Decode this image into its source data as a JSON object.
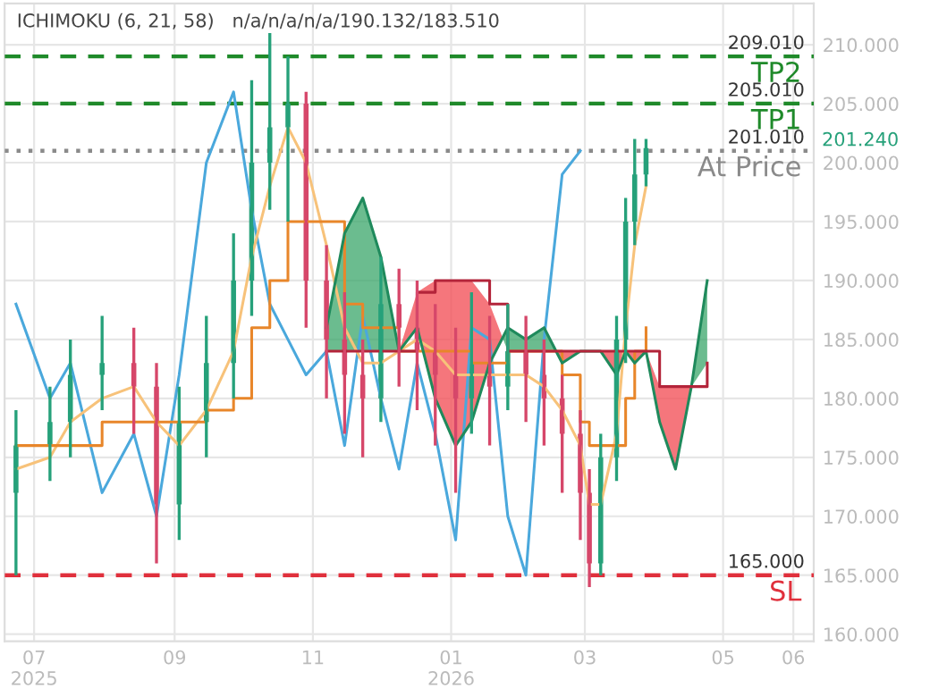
{
  "chart_data": {
    "type": "candlestick",
    "title": "ICHIMOKU (6, 21, 58)   n/a/n/a/n/a/190.132/183.510",
    "x": [
      "2025-06-23",
      "2025-07-08",
      "2025-07-17",
      "2025-07-31",
      "2025-08-14",
      "2025-08-24",
      "2025-09-03",
      "2025-09-15",
      "2025-09-27",
      "2025-10-05",
      "2025-10-13",
      "2025-10-21",
      "2025-10-29",
      "2025-11-07",
      "2025-11-15",
      "2025-11-23",
      "2025-12-01",
      "2025-12-09",
      "2025-12-17",
      "2025-12-25",
      "2026-01-03",
      "2026-01-10",
      "2026-01-18",
      "2026-01-26",
      "2026-02-03",
      "2026-02-11",
      "2026-02-19",
      "2026-02-27",
      "2026-03-03",
      "2026-03-08",
      "2026-03-15",
      "2026-03-19",
      "2026-03-23",
      "2026-03-28"
    ],
    "ohlc": [
      [
        172,
        179,
        165,
        176
      ],
      [
        176,
        181,
        173,
        178
      ],
      [
        178,
        185,
        175,
        182
      ],
      [
        182,
        187,
        179,
        183
      ],
      [
        183,
        186,
        177,
        181
      ],
      [
        181,
        183,
        166,
        171
      ],
      [
        171,
        181,
        168,
        178
      ],
      [
        178,
        187,
        175,
        183
      ],
      [
        183,
        194,
        180,
        190
      ],
      [
        190,
        207,
        187,
        200
      ],
      [
        200,
        211,
        196,
        203
      ],
      [
        203,
        209,
        195,
        205
      ],
      [
        205,
        206,
        186,
        190
      ],
      [
        190,
        193,
        180,
        185
      ],
      [
        185,
        189,
        177,
        182
      ],
      [
        182,
        185,
        175,
        180
      ],
      [
        180,
        192,
        178,
        188
      ],
      [
        188,
        191,
        181,
        186
      ],
      [
        186,
        190,
        179,
        184
      ],
      [
        184,
        188,
        176,
        182
      ],
      [
        182,
        186,
        172,
        180
      ],
      [
        180,
        189,
        177,
        183
      ],
      [
        183,
        187,
        176,
        181
      ],
      [
        181,
        188,
        179,
        184
      ],
      [
        184,
        187,
        178,
        182
      ],
      [
        182,
        185,
        176,
        180
      ],
      [
        180,
        182,
        172,
        177
      ],
      [
        177,
        179,
        168,
        172
      ],
      [
        172,
        174,
        164,
        166
      ],
      [
        166,
        177,
        165,
        175
      ],
      [
        175,
        187,
        173,
        185
      ],
      [
        185,
        197,
        183,
        195
      ],
      [
        195,
        202,
        193,
        199
      ],
      [
        199,
        202,
        198,
        201.24
      ]
    ],
    "colors": [
      "#26a17a",
      "#26a17a",
      "#26a17a",
      "#26a17a",
      "#d6476a",
      "#d6476a",
      "#26a17a",
      "#26a17a",
      "#26a17a",
      "#26a17a",
      "#26a17a",
      "#26a17a",
      "#d6476a",
      "#d6476a",
      "#d6476a",
      "#d6476a",
      "#26a17a",
      "#d6476a",
      "#d6476a",
      "#d6476a",
      "#d6476a",
      "#26a17a",
      "#d6476a",
      "#26a17a",
      "#d6476a",
      "#d6476a",
      "#d6476a",
      "#d6476a",
      "#d6476a",
      "#26a17a",
      "#26a17a",
      "#26a17a",
      "#26a17a",
      "#26a17a"
    ],
    "series": [
      {
        "type": "line",
        "color": "#4aa8dc",
        "x": [
          "2025-06-23",
          "2025-07-08",
          "2025-07-17",
          "2025-07-31",
          "2025-08-14",
          "2025-08-24",
          "2025-09-03",
          "2025-09-15",
          "2025-09-27",
          "2025-10-05",
          "2025-10-13",
          "2025-10-21",
          "2025-10-29",
          "2025-11-07",
          "2025-11-15",
          "2025-11-23",
          "2025-12-01",
          "2025-12-09",
          "2025-12-17",
          "2025-12-25",
          "2026-01-03",
          "2026-01-10",
          "2026-01-18",
          "2026-01-26",
          "2026-02-03",
          "2026-02-11",
          "2026-02-19",
          "2026-02-27"
        ],
        "values": [
          188,
          180,
          183,
          172,
          177,
          170,
          182,
          200,
          206,
          196,
          188,
          185,
          182,
          184,
          176,
          187,
          180,
          174,
          183,
          177,
          168,
          186,
          185,
          170,
          165,
          185,
          199,
          201
        ]
      },
      {
        "type": "line",
        "color": "#f7c27a",
        "x": [
          "2025-06-23",
          "2025-07-08",
          "2025-07-17",
          "2025-07-31",
          "2025-08-14",
          "2025-08-24",
          "2025-09-03",
          "2025-09-15",
          "2025-09-27",
          "2025-10-05",
          "2025-10-13",
          "2025-10-21",
          "2025-10-29",
          "2025-11-07",
          "2025-11-15",
          "2025-11-23",
          "2025-12-01",
          "2025-12-09",
          "2025-12-17",
          "2025-12-25",
          "2026-01-03",
          "2026-01-10",
          "2026-01-18",
          "2026-01-26",
          "2026-02-03",
          "2026-02-11",
          "2026-02-19",
          "2026-02-27",
          "2026-03-03",
          "2026-03-08",
          "2026-03-15",
          "2026-03-19",
          "2026-03-23",
          "2026-03-28"
        ],
        "values": [
          174,
          175,
          178,
          180,
          181,
          178,
          176,
          179,
          184,
          192,
          198,
          203,
          200,
          193,
          186,
          183,
          183,
          184,
          185,
          184,
          182,
          182,
          182,
          182,
          182,
          181,
          179,
          176,
          171,
          171,
          177,
          186,
          193,
          198
        ]
      },
      {
        "type": "step",
        "color": "#e8862a",
        "x": [
          "2025-06-23",
          "2025-07-08",
          "2025-07-17",
          "2025-07-31",
          "2025-08-14",
          "2025-08-24",
          "2025-09-03",
          "2025-09-15",
          "2025-09-27",
          "2025-10-05",
          "2025-10-13",
          "2025-10-21",
          "2025-10-29",
          "2025-11-07",
          "2025-11-15",
          "2025-11-23",
          "2025-12-01",
          "2025-12-09",
          "2025-12-17",
          "2025-12-25",
          "2026-01-03",
          "2026-01-10",
          "2026-01-18",
          "2026-01-26",
          "2026-02-03",
          "2026-02-11",
          "2026-02-19",
          "2026-02-27",
          "2026-03-03",
          "2026-03-08",
          "2026-03-15",
          "2026-03-19",
          "2026-03-23",
          "2026-03-28"
        ],
        "values": [
          176,
          176,
          176,
          178,
          178,
          178,
          178,
          179,
          180,
          186,
          190,
          195,
          195,
          195,
          188,
          186,
          186,
          184,
          184,
          184,
          184,
          183,
          183,
          184,
          184,
          184,
          182,
          178,
          176,
          176,
          176,
          180,
          184,
          186
        ]
      },
      {
        "type": "line",
        "color": "#1f8a5c",
        "x": [
          "2025-11-07",
          "2025-11-15",
          "2025-11-23",
          "2025-12-01",
          "2025-12-09",
          "2025-12-17",
          "2025-12-25",
          "2026-01-03",
          "2026-01-10",
          "2026-01-18",
          "2026-01-26",
          "2026-02-03",
          "2026-02-11",
          "2026-02-19",
          "2026-02-27",
          "2026-03-03",
          "2026-03-08",
          "2026-03-15",
          "2026-03-19",
          "2026-03-23",
          "2026-03-28",
          "2026-04-03",
          "2026-04-10",
          "2026-04-17",
          "2026-04-24"
        ],
        "values": [
          186,
          194,
          197,
          192,
          184,
          186,
          180,
          176,
          178,
          183,
          186,
          185,
          186,
          183,
          184,
          184,
          184,
          182,
          184,
          183,
          184,
          178,
          174,
          181,
          190
        ]
      },
      {
        "type": "step",
        "color": "#b3243a",
        "x": [
          "2025-11-07",
          "2025-11-15",
          "2025-11-23",
          "2025-12-01",
          "2025-12-09",
          "2025-12-17",
          "2025-12-25",
          "2026-01-03",
          "2026-01-10",
          "2026-01-18",
          "2026-01-26",
          "2026-02-03",
          "2026-02-11",
          "2026-02-19",
          "2026-02-27",
          "2026-03-03",
          "2026-03-08",
          "2026-03-15",
          "2026-03-19",
          "2026-03-23",
          "2026-03-28",
          "2026-04-03",
          "2026-04-10",
          "2026-04-17",
          "2026-04-24"
        ],
        "values": [
          184,
          184,
          184,
          184,
          184,
          189,
          190,
          190,
          190,
          188,
          184,
          184,
          184,
          184,
          184,
          184,
          184,
          184,
          184,
          184,
          184,
          181,
          181,
          181,
          183
        ]
      }
    ],
    "ref_lines": [
      {
        "axis": "y",
        "value": 209.01,
        "label": "TP2",
        "color": "#1f8a2a",
        "line_style": "dashed"
      },
      {
        "axis": "y",
        "value": 205.01,
        "label": "TP1",
        "color": "#1f8a2a",
        "line_style": "dashed"
      },
      {
        "axis": "y",
        "value": 201.01,
        "label": "At Price",
        "color": "#8a8a8a",
        "line_style": "dotted"
      },
      {
        "axis": "y",
        "value": 165,
        "label": "SL",
        "color": "#e0303c",
        "line_style": "dashed"
      }
    ],
    "annotations": [
      {
        "text": "209.010",
        "x": "2026-05-20",
        "y": 209.01
      },
      {
        "text": "205.010",
        "x": "2026-05-20",
        "y": 205.01
      },
      {
        "text": "201.010",
        "x": "2026-05-20",
        "y": 201.01
      },
      {
        "text": "165.000",
        "x": "2026-05-20",
        "y": 165
      },
      "201.240"
    ],
    "xlim": [
      "2025-06-18",
      "2026-06-10"
    ],
    "xticks": [
      {
        "value": "2025-07-01",
        "label": "07\n2025"
      },
      {
        "value": "2025-09-01",
        "label": "09"
      },
      {
        "value": "2025-11-01",
        "label": "11"
      },
      {
        "value": "2026-01-01",
        "label": "01\n2026"
      },
      {
        "value": "2026-03-01",
        "label": "03"
      },
      {
        "value": "2026-05-01",
        "label": "05"
      },
      {
        "value": "2026-06-01",
        "label": "06"
      }
    ],
    "ylim": [
      159.4,
      213.5
    ],
    "yticks": [
      {
        "value": 160,
        "label": "160.000"
      },
      {
        "value": 165,
        "label": "165.000"
      },
      {
        "value": 170,
        "label": "170.000"
      },
      {
        "value": 175,
        "label": "175.000"
      },
      {
        "value": 180,
        "label": "180.000"
      },
      {
        "value": 185,
        "label": "185.000"
      },
      {
        "value": 190,
        "label": "190.000"
      },
      {
        "value": 195,
        "label": "195.000"
      },
      {
        "value": 200,
        "label": "200.000"
      },
      {
        "value": 205,
        "label": "205.000"
      },
      {
        "value": 210,
        "label": "210.000"
      }
    ],
    "grid": true
  }
}
